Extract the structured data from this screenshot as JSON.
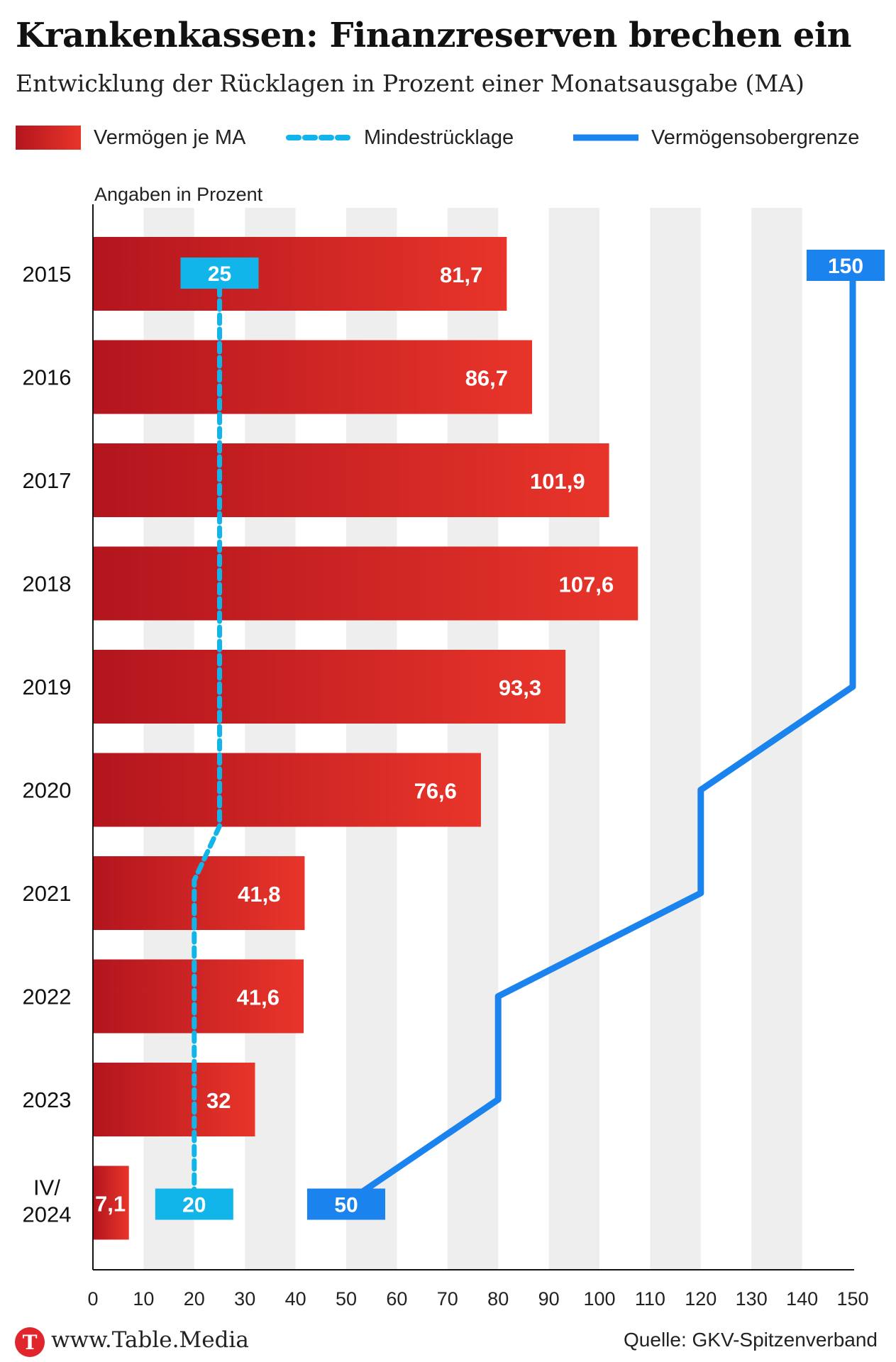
{
  "header": {
    "title": "Krankenkassen: Finanzreserven brechen ein",
    "subtitle": "Entwicklung der Rücklagen in Prozent einer Monatsausgabe (MA)"
  },
  "legend": [
    {
      "label": "Vermögen je MA",
      "kind": "bar"
    },
    {
      "label": "Mindestrücklage",
      "kind": "dashed-line"
    },
    {
      "label": "Vermögensobergrenze",
      "kind": "line"
    }
  ],
  "chart_data": {
    "type": "bar",
    "orientation": "horizontal",
    "unit_label": "Angaben in Prozent",
    "categories": [
      "2015",
      "2016",
      "2017",
      "2018",
      "2019",
      "2020",
      "2021",
      "2022",
      "2023",
      "IV/\n2024"
    ],
    "series": [
      {
        "name": "Vermögen je MA",
        "kind": "bar",
        "values": [
          81.7,
          86.7,
          101.9,
          107.6,
          93.3,
          76.6,
          41.8,
          41.6,
          32,
          7.1
        ],
        "value_labels": [
          "81,7",
          "86,7",
          "101,9",
          "107,6",
          "93,3",
          "76,6",
          "41,8",
          "41,6",
          "32",
          "7,1"
        ]
      },
      {
        "name": "Mindestrücklage",
        "kind": "dashed-line",
        "values": [
          25,
          25,
          25,
          25,
          25,
          25,
          20,
          20,
          20,
          20
        ],
        "callouts": [
          {
            "category_index": 0,
            "label": "25"
          },
          {
            "category_index": 9,
            "label": "20"
          }
        ]
      },
      {
        "name": "Vermögensobergrenze",
        "kind": "line",
        "values": [
          150,
          150,
          150,
          150,
          150,
          120,
          120,
          80,
          80,
          50
        ],
        "callouts": [
          {
            "category_index": 0,
            "label": "150"
          },
          {
            "category_index": 9,
            "label": "50"
          }
        ]
      }
    ],
    "xlim": [
      0,
      150
    ],
    "x_ticks": [
      0,
      10,
      20,
      30,
      40,
      50,
      60,
      70,
      80,
      90,
      100,
      110,
      120,
      130,
      140,
      150
    ],
    "grid": "alternating vertical bands",
    "legend_position": "top",
    "colors": {
      "bar_dark": "#b3151e",
      "bar_light": "#e8352a",
      "band": "#eeeeee",
      "min_line": "#12b5ea",
      "upper_line": "#1b83ee",
      "label_text": "#ffffff",
      "axis": "#111111"
    }
  },
  "footer": {
    "logo_letter": "T",
    "url": "www.Table.Media",
    "source": "Quelle: GKV-Spitzenverband"
  }
}
